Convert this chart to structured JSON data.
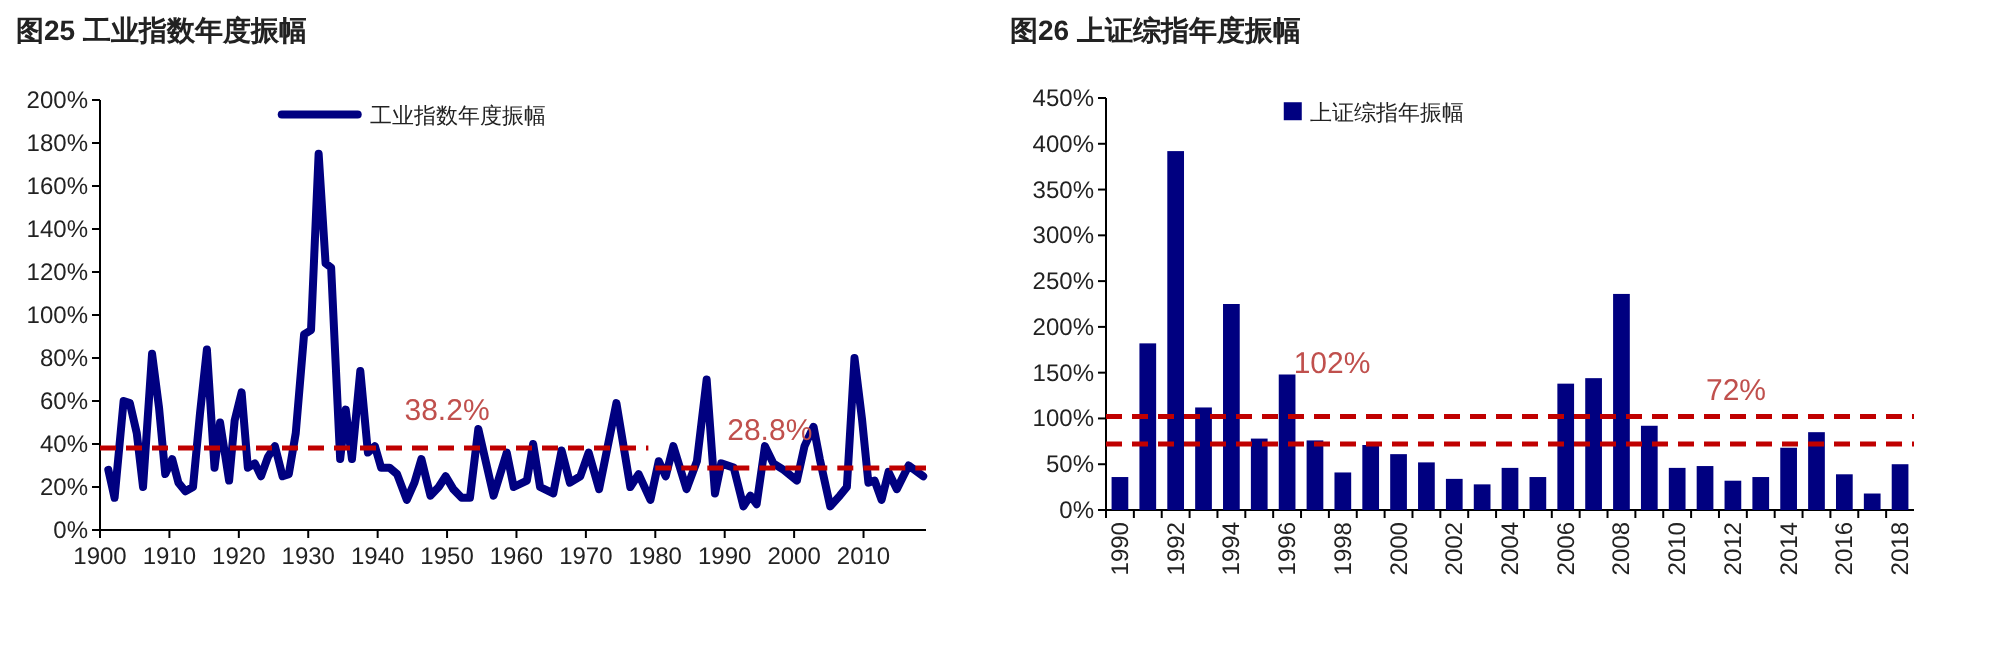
{
  "chart_data": [
    {
      "type": "line",
      "title": "图25 工业指数年度振幅",
      "legend": "top",
      "xlim": [
        1900,
        2019
      ],
      "xticks": [
        1900,
        1910,
        1920,
        1930,
        1940,
        1950,
        1960,
        1970,
        1980,
        1990,
        2000,
        2010
      ],
      "ylim": [
        0,
        200
      ],
      "yticks": [
        {
          "value": 0,
          "label": "0%"
        },
        {
          "value": 20,
          "label": "20%"
        },
        {
          "value": 40,
          "label": "40%"
        },
        {
          "value": 60,
          "label": "60%"
        },
        {
          "value": 80,
          "label": "80%"
        },
        {
          "value": 100,
          "label": "100%"
        },
        {
          "value": 120,
          "label": "120%"
        },
        {
          "value": 140,
          "label": "140%"
        },
        {
          "value": 160,
          "label": "160%"
        },
        {
          "value": 180,
          "label": "180%"
        },
        {
          "value": 200,
          "label": "200%"
        }
      ],
      "series": [
        {
          "name": "工业指数年度振幅",
          "color": "#000080",
          "x": [
            1901.2,
            1902.1,
            1903.4,
            1904.3,
            1905.3,
            1906.2,
            1907.5,
            1908.5,
            1909.4,
            1910.4,
            1911.3,
            1912.3,
            1913.4,
            1914.4,
            1915.4,
            1916.5,
            1917.3,
            1918.6,
            1919.4,
            1920.4,
            1921.3,
            1922.3,
            1923.2,
            1924.2,
            1925.2,
            1926.3,
            1927.2,
            1928.2,
            1929.4,
            1930.4,
            1931.5,
            1932.5,
            1933.3,
            1934.6,
            1935.4,
            1936.3,
            1937.5,
            1938.6,
            1939.6,
            1940.5,
            1941.7,
            1942.8,
            1944.2,
            1945.3,
            1946.3,
            1947.6,
            1948.8,
            1949.8,
            1950.9,
            1952.1,
            1953.3,
            1954.5,
            1956.7,
            1958.6,
            1959.6,
            1961.5,
            1962.4,
            1963.4,
            1965.3,
            1966.5,
            1967.7,
            1969.2,
            1970.4,
            1971.9,
            1974.4,
            1976.4,
            1977.6,
            1979.3,
            1980.5,
            1981.5,
            1982.6,
            1984.5,
            1986,
            1987.4,
            1988.6,
            1989.5,
            1991.3,
            1992.7,
            1993.7,
            1994.6,
            1995.8,
            1997,
            1998.5,
            2000.4,
            2001.5,
            2002.8,
            2003.7,
            2005.2,
            2006.6,
            2007.6,
            2008.7,
            2009.8,
            2010.7,
            2011.6,
            2012.6,
            2013.6,
            2014.8,
            2016.5,
            2018.6
          ],
          "values": [
            28,
            15,
            60,
            59,
            45,
            20,
            82,
            57,
            26,
            33,
            22,
            18,
            20,
            54,
            84,
            29,
            50,
            23,
            51,
            64,
            29,
            31,
            25,
            34,
            39,
            25,
            26,
            45,
            91,
            93,
            175,
            124,
            122,
            33,
            56,
            33,
            74,
            36,
            39,
            29,
            29,
            26,
            14,
            22,
            33,
            16,
            20,
            25,
            19,
            15,
            15,
            47,
            16,
            36,
            20,
            23,
            40,
            20,
            17,
            37,
            22,
            25,
            36,
            19,
            59,
            20,
            26,
            14,
            32,
            25,
            39,
            19,
            32,
            70,
            17,
            31,
            29,
            11,
            16,
            12,
            39,
            31,
            28,
            23,
            39,
            48,
            33,
            11,
            16,
            20,
            80,
            51,
            22,
            23,
            14,
            27,
            19,
            30,
            25
          ]
        },
        {
          "type": "line",
          "color": "#c00000",
          "line_style": "dashed",
          "x": [
            1900,
            1979
          ],
          "values": [
            38.2,
            38.2
          ]
        },
        {
          "type": "line",
          "color": "#c00000",
          "line_style": "dashed",
          "x": [
            1980,
            2019
          ],
          "values": [
            28.8,
            28.8
          ]
        }
      ],
      "annotations": [
        {
          "text": "38.2%",
          "x": 1950,
          "y": 38.2
        },
        {
          "text": "28.8%",
          "x": 1996.5,
          "y": 28.8
        }
      ]
    },
    {
      "type": "bar",
      "title": "图26 上证综指年度振幅",
      "legend": "top",
      "categories": [
        "1990",
        null,
        "1992",
        null,
        "1994",
        null,
        "1996",
        null,
        "1998",
        null,
        "2000",
        null,
        "2002",
        null,
        "2004",
        null,
        "2006",
        null,
        "2008",
        null,
        "2010",
        null,
        "2012",
        null,
        "2014",
        null,
        "2016",
        null,
        "2018"
      ],
      "ylim": [
        0,
        450
      ],
      "yticks": [
        {
          "value": 0,
          "label": "0%"
        },
        {
          "value": 50,
          "label": "50%"
        },
        {
          "value": 100,
          "label": "100%"
        },
        {
          "value": 150,
          "label": "150%"
        },
        {
          "value": 200,
          "label": "200%"
        },
        {
          "value": 250,
          "label": "250%"
        },
        {
          "value": 300,
          "label": "300%"
        },
        {
          "value": 350,
          "label": "350%"
        },
        {
          "value": 400,
          "label": "400%"
        },
        {
          "value": 450,
          "label": "450%"
        }
      ],
      "series": [
        {
          "name": "上证综指年振幅",
          "color": "#000080",
          "values": [
            36,
            182,
            392,
            112,
            225,
            78,
            148,
            76,
            41,
            71,
            61,
            52,
            34,
            28,
            46,
            36,
            138,
            144,
            236,
            92,
            46,
            48,
            32,
            36,
            68,
            85,
            39,
            18,
            50
          ]
        }
      ],
      "ref_lines": [
        {
          "axis": "y",
          "value": 102,
          "label": "102%",
          "color": "#c00000",
          "line_style": "dashed"
        },
        {
          "axis": "y",
          "value": 72,
          "label": "72%",
          "color": "#c00000",
          "line_style": "dashed"
        }
      ]
    }
  ]
}
